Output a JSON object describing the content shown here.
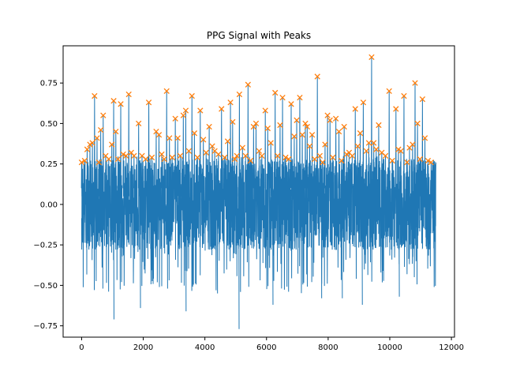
{
  "chart_data": {
    "type": "line",
    "title": "PPG Signal with Peaks",
    "xlabel": "",
    "ylabel": "",
    "xlim": [
      -600,
      12100
    ],
    "ylim": [
      -0.82,
      0.98
    ],
    "x_ticks": [
      0,
      2000,
      4000,
      6000,
      8000,
      10000,
      12000
    ],
    "x_tick_labels": [
      "0",
      "2000",
      "4000",
      "6000",
      "8000",
      "10000",
      "12000"
    ],
    "y_ticks": [
      -0.75,
      -0.5,
      -0.25,
      0.0,
      0.25,
      0.5,
      0.75
    ],
    "y_tick_labels": [
      "−0.75",
      "−0.50",
      "−0.25",
      "0.00",
      "0.25",
      "0.50",
      "0.75"
    ],
    "grid": false,
    "legend": "none",
    "signal_length": 11500,
    "series": [
      {
        "kind": "line",
        "color": "#1f77b4"
      },
      {
        "kind": "scatter",
        "marker": "x",
        "color": "#ff7f0e"
      }
    ],
    "peaks": [
      {
        "x": 0,
        "y": 0.26
      },
      {
        "x": 100,
        "y": 0.27
      },
      {
        "x": 180,
        "y": 0.34
      },
      {
        "x": 270,
        "y": 0.37
      },
      {
        "x": 350,
        "y": 0.38
      },
      {
        "x": 420,
        "y": 0.67
      },
      {
        "x": 500,
        "y": 0.41
      },
      {
        "x": 560,
        "y": 0.26
      },
      {
        "x": 620,
        "y": 0.46
      },
      {
        "x": 700,
        "y": 0.55
      },
      {
        "x": 780,
        "y": 0.3
      },
      {
        "x": 880,
        "y": 0.28
      },
      {
        "x": 980,
        "y": 0.37
      },
      {
        "x": 1040,
        "y": 0.64
      },
      {
        "x": 1110,
        "y": 0.45
      },
      {
        "x": 1180,
        "y": 0.28
      },
      {
        "x": 1270,
        "y": 0.62
      },
      {
        "x": 1350,
        "y": 0.31
      },
      {
        "x": 1440,
        "y": 0.3
      },
      {
        "x": 1530,
        "y": 0.68
      },
      {
        "x": 1610,
        "y": 0.32
      },
      {
        "x": 1700,
        "y": 0.3
      },
      {
        "x": 1850,
        "y": 0.5
      },
      {
        "x": 1960,
        "y": 0.3
      },
      {
        "x": 2080,
        "y": 0.28
      },
      {
        "x": 2180,
        "y": 0.63
      },
      {
        "x": 2280,
        "y": 0.29
      },
      {
        "x": 2420,
        "y": 0.45
      },
      {
        "x": 2510,
        "y": 0.43
      },
      {
        "x": 2600,
        "y": 0.31
      },
      {
        "x": 2680,
        "y": 0.28
      },
      {
        "x": 2760,
        "y": 0.7
      },
      {
        "x": 2850,
        "y": 0.41
      },
      {
        "x": 2940,
        "y": 0.29
      },
      {
        "x": 3040,
        "y": 0.53
      },
      {
        "x": 3120,
        "y": 0.41
      },
      {
        "x": 3200,
        "y": 0.3
      },
      {
        "x": 3300,
        "y": 0.55
      },
      {
        "x": 3380,
        "y": 0.58
      },
      {
        "x": 3480,
        "y": 0.33
      },
      {
        "x": 3580,
        "y": 0.67
      },
      {
        "x": 3660,
        "y": 0.44
      },
      {
        "x": 3760,
        "y": 0.29
      },
      {
        "x": 3850,
        "y": 0.58
      },
      {
        "x": 3950,
        "y": 0.4
      },
      {
        "x": 4040,
        "y": 0.32
      },
      {
        "x": 4140,
        "y": 0.48
      },
      {
        "x": 4240,
        "y": 0.36
      },
      {
        "x": 4320,
        "y": 0.33
      },
      {
        "x": 4440,
        "y": 0.31
      },
      {
        "x": 4540,
        "y": 0.59
      },
      {
        "x": 4640,
        "y": 0.29
      },
      {
        "x": 4740,
        "y": 0.39
      },
      {
        "x": 4830,
        "y": 0.63
      },
      {
        "x": 4900,
        "y": 0.51
      },
      {
        "x": 4970,
        "y": 0.28
      },
      {
        "x": 5040,
        "y": 0.3
      },
      {
        "x": 5120,
        "y": 0.68
      },
      {
        "x": 5220,
        "y": 0.35
      },
      {
        "x": 5320,
        "y": 0.3
      },
      {
        "x": 5400,
        "y": 0.74
      },
      {
        "x": 5480,
        "y": 0.27
      },
      {
        "x": 5580,
        "y": 0.48
      },
      {
        "x": 5660,
        "y": 0.5
      },
      {
        "x": 5760,
        "y": 0.33
      },
      {
        "x": 5850,
        "y": 0.3
      },
      {
        "x": 5960,
        "y": 0.58
      },
      {
        "x": 6040,
        "y": 0.47
      },
      {
        "x": 6140,
        "y": 0.38
      },
      {
        "x": 6280,
        "y": 0.69
      },
      {
        "x": 6360,
        "y": 0.3
      },
      {
        "x": 6440,
        "y": 0.49
      },
      {
        "x": 6520,
        "y": 0.66
      },
      {
        "x": 6620,
        "y": 0.29
      },
      {
        "x": 6720,
        "y": 0.28
      },
      {
        "x": 6800,
        "y": 0.62
      },
      {
        "x": 6900,
        "y": 0.42
      },
      {
        "x": 6980,
        "y": 0.52
      },
      {
        "x": 7080,
        "y": 0.66
      },
      {
        "x": 7160,
        "y": 0.43
      },
      {
        "x": 7260,
        "y": 0.5
      },
      {
        "x": 7320,
        "y": 0.48
      },
      {
        "x": 7400,
        "y": 0.36
      },
      {
        "x": 7480,
        "y": 0.43
      },
      {
        "x": 7560,
        "y": 0.28
      },
      {
        "x": 7650,
        "y": 0.79
      },
      {
        "x": 7730,
        "y": 0.3
      },
      {
        "x": 7820,
        "y": 0.26
      },
      {
        "x": 7900,
        "y": 0.37
      },
      {
        "x": 7980,
        "y": 0.55
      },
      {
        "x": 8060,
        "y": 0.52
      },
      {
        "x": 8150,
        "y": 0.29
      },
      {
        "x": 8250,
        "y": 0.53
      },
      {
        "x": 8350,
        "y": 0.45
      },
      {
        "x": 8430,
        "y": 0.27
      },
      {
        "x": 8520,
        "y": 0.48
      },
      {
        "x": 8600,
        "y": 0.31
      },
      {
        "x": 8680,
        "y": 0.32
      },
      {
        "x": 8780,
        "y": 0.3
      },
      {
        "x": 8880,
        "y": 0.59
      },
      {
        "x": 8960,
        "y": 0.36
      },
      {
        "x": 9040,
        "y": 0.44
      },
      {
        "x": 9140,
        "y": 0.63
      },
      {
        "x": 9240,
        "y": 0.33
      },
      {
        "x": 9320,
        "y": 0.38
      },
      {
        "x": 9410,
        "y": 0.91
      },
      {
        "x": 9480,
        "y": 0.38
      },
      {
        "x": 9560,
        "y": 0.34
      },
      {
        "x": 9640,
        "y": 0.49
      },
      {
        "x": 9740,
        "y": 0.32
      },
      {
        "x": 9860,
        "y": 0.3
      },
      {
        "x": 9980,
        "y": 0.7
      },
      {
        "x": 10080,
        "y": 0.27
      },
      {
        "x": 10200,
        "y": 0.59
      },
      {
        "x": 10280,
        "y": 0.34
      },
      {
        "x": 10360,
        "y": 0.33
      },
      {
        "x": 10460,
        "y": 0.67
      },
      {
        "x": 10560,
        "y": 0.26
      },
      {
        "x": 10640,
        "y": 0.35
      },
      {
        "x": 10740,
        "y": 0.37
      },
      {
        "x": 10820,
        "y": 0.75
      },
      {
        "x": 10900,
        "y": 0.5
      },
      {
        "x": 10980,
        "y": 0.28
      },
      {
        "x": 11060,
        "y": 0.65
      },
      {
        "x": 11140,
        "y": 0.41
      },
      {
        "x": 11240,
        "y": 0.27
      },
      {
        "x": 11340,
        "y": 0.26
      }
    ]
  }
}
